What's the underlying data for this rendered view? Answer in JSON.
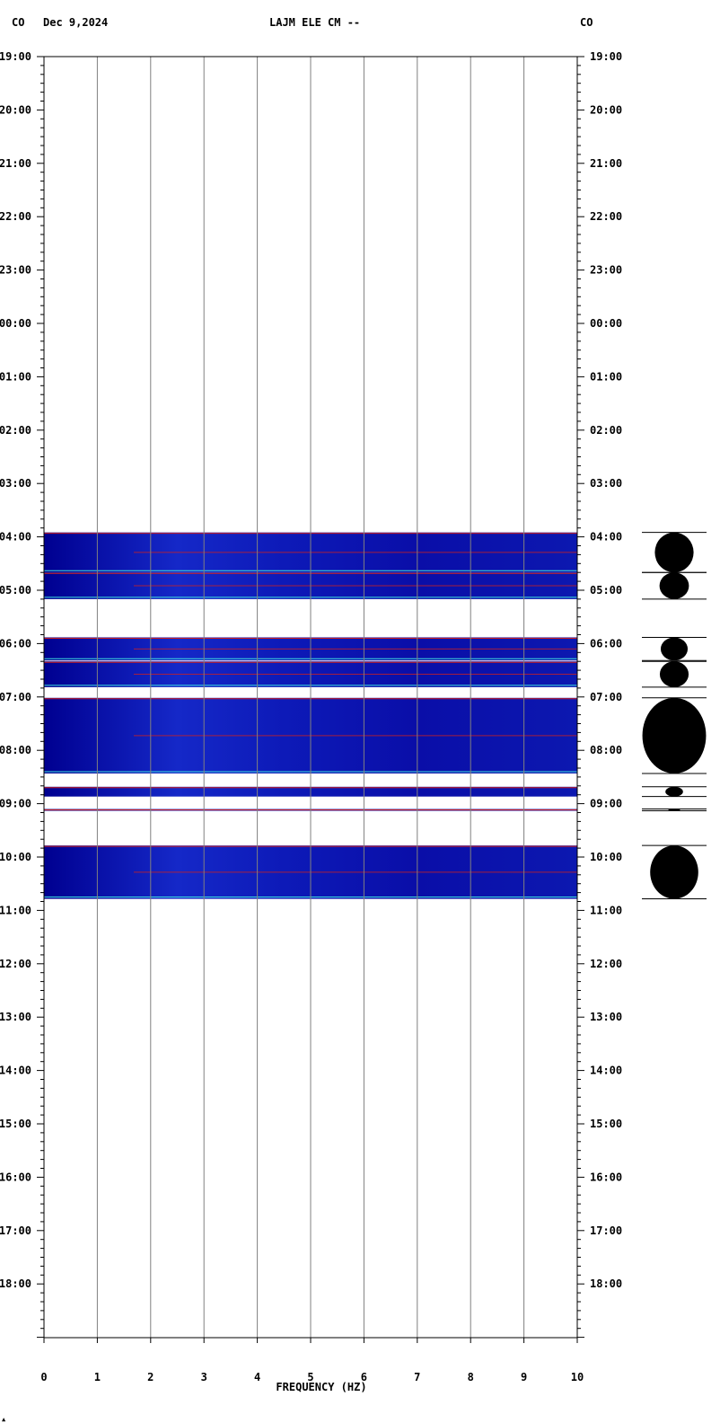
{
  "header": {
    "left_code": "CO",
    "date": "Dec 9,2024",
    "station": "LAJM ELE CM --",
    "right_code": "CO"
  },
  "chart_data": {
    "type": "heatmap",
    "title": "LAJM ELE CM --",
    "date": "Dec 9,2024",
    "xlabel": "FREQUENCY (HZ)",
    "ylabel": "",
    "xlim": [
      0,
      10
    ],
    "x_ticks": [
      "0",
      "1",
      "2",
      "3",
      "4",
      "5",
      "6",
      "7",
      "8",
      "9",
      "10"
    ],
    "y_ticks": [
      "19:00",
      "20:00",
      "21:00",
      "22:00",
      "23:00",
      "00:00",
      "01:00",
      "02:00",
      "03:00",
      "04:00",
      "05:00",
      "06:00",
      "07:00",
      "08:00",
      "09:00",
      "10:00",
      "11:00",
      "12:00",
      "13:00",
      "14:00",
      "15:00",
      "16:00",
      "17:00",
      "18:00"
    ],
    "time_range": [
      "19:00",
      "19:00 (+24h)"
    ],
    "grid": true,
    "colors": {
      "background": "#0a0aa8",
      "dark": "#000080",
      "strip_blue": "#1e2cd0",
      "line_red": "#cc2020",
      "line_cyan": "#40e0e0",
      "line_yellow": "#ffff60",
      "trace": "#000000"
    },
    "data_segments": [
      {
        "start": "03:55",
        "end": "04:40",
        "note": "spectrogram data"
      },
      {
        "start": "04:40",
        "end": "05:10",
        "note": "spectrogram data"
      },
      {
        "start": "05:53",
        "end": "06:19",
        "note": "spectrogram data"
      },
      {
        "start": "06:20",
        "end": "06:49",
        "note": "spectrogram data"
      },
      {
        "start": "07:01",
        "end": "08:26",
        "note": "spectrogram data"
      },
      {
        "start": "08:41",
        "end": "08:52",
        "note": "spectrogram data"
      },
      {
        "start": "09:06",
        "end": "09:08",
        "note": "spectrogram data"
      },
      {
        "start": "09:47",
        "end": "10:47",
        "note": "spectrogram data"
      }
    ]
  }
}
